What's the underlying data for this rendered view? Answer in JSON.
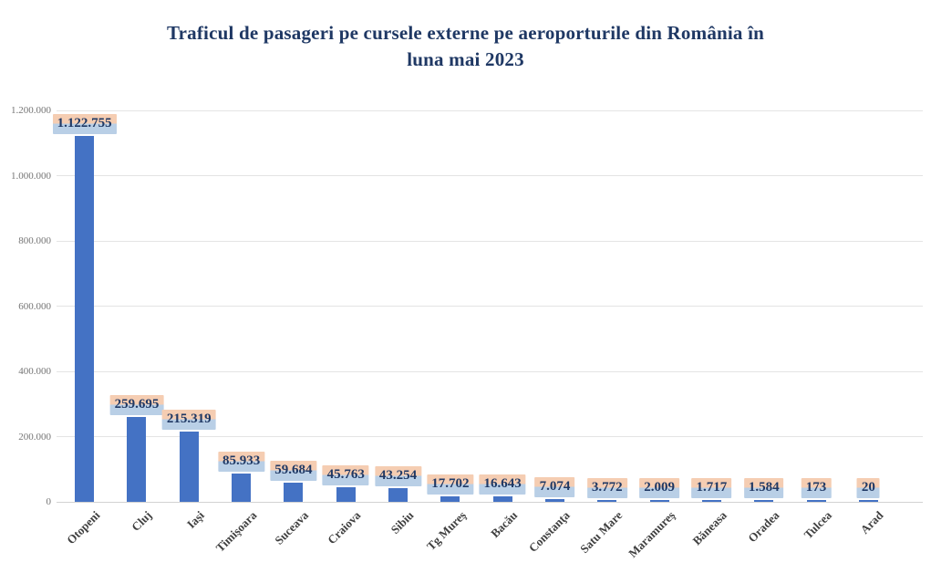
{
  "chart": {
    "title_lines": [
      "Traficul de pasageri pe cursele externe pe aeroporturile din România în",
      "luna mai 2023"
    ]
  },
  "chart_data": {
    "type": "bar",
    "title": "Traficul de pasageri pe cursele externe pe aeroporturile din România în luna mai 2023",
    "categories": [
      "Otopeni",
      "Cluj",
      "Iaşi",
      "Timişoara",
      "Suceava",
      "Craiova",
      "Sibiu",
      "Tg Mureş",
      "Bacău",
      "Constanţa",
      "Satu Mare",
      "Maramureş",
      "Băneasa",
      "Oradea",
      "Tulcea",
      "Arad"
    ],
    "values": [
      1122755,
      259695,
      215319,
      85933,
      59684,
      45763,
      43254,
      17702,
      16643,
      7074,
      3772,
      2009,
      1717,
      1584,
      173,
      20
    ],
    "data_labels": [
      "1.122.755",
      "259.695",
      "215.319",
      "85.933",
      "59.684",
      "45.763",
      "43.254",
      "17.702",
      "16.643",
      "7.074",
      "3.772",
      "2.009",
      "1.717",
      "1.584",
      "173",
      "20"
    ],
    "xlabel": "",
    "ylabel": "",
    "ylim": [
      0,
      1200000
    ],
    "grid": true,
    "legend": "none",
    "y_axis": {
      "min": 0,
      "max": 1200000,
      "ticks": [
        {
          "value": 1200000,
          "label": "1.200.000"
        },
        {
          "value": 1000000,
          "label": "1.000.000"
        },
        {
          "value": 800000,
          "label": "800.000"
        },
        {
          "value": 600000,
          "label": "600.000"
        },
        {
          "value": 400000,
          "label": "400.000"
        },
        {
          "value": 200000,
          "label": "200.000"
        },
        {
          "value": 0,
          "label": "0"
        }
      ]
    },
    "colors": {
      "bar": "#4472c4",
      "data_label_bg_top": "#f5cdb2",
      "data_label_bg_bottom": "#b9cfe6",
      "data_label_text": "#1f3864",
      "title_text": "#1f3864",
      "y_axis_text": "#757575",
      "x_axis_text": "#3f3f3f",
      "gridline": "#e4e4e4"
    }
  }
}
